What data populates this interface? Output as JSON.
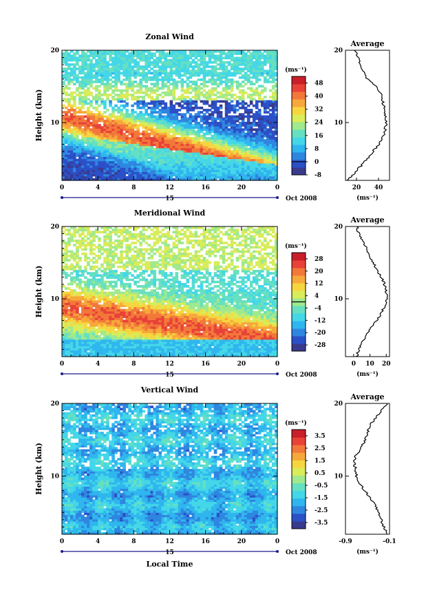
{
  "figure": {
    "xlabel": "Local Time",
    "date_label": "Oct 2008",
    "day_label": "15",
    "ylabel": "Height (km)",
    "units_label": "(ms⁻¹)",
    "avg_title": "Average",
    "colors": [
      "#3a3a8c",
      "#2b50c8",
      "#2f86e0",
      "#30b6ee",
      "#44d7e8",
      "#66e0c0",
      "#9fe98e",
      "#d9ec5a",
      "#f6d640",
      "#f7a83a",
      "#f2783a",
      "#e84238",
      "#c8202a"
    ]
  },
  "chart_data": [
    {
      "type": "heatmap",
      "title": "Zonal Wind",
      "x_ticks": [
        "0",
        "4",
        "8",
        "12",
        "16",
        "20",
        "0"
      ],
      "y_ticks": [
        "20",
        "10"
      ],
      "xlim": [
        0,
        24
      ],
      "ylim": [
        2,
        20
      ],
      "colorbar": {
        "ticks": [
          "48",
          "40",
          "32",
          "24",
          "16",
          "8",
          "0",
          "-8"
        ],
        "range": [
          -8,
          52
        ],
        "zero_line": 0
      },
      "average": {
        "title": "Average",
        "x_ticks": [
          "20",
          "40"
        ],
        "xlim": [
          10,
          50
        ],
        "heights": [
          2,
          3,
          4,
          5,
          6,
          7,
          8,
          9,
          10,
          11,
          12,
          13,
          14,
          15,
          16,
          17,
          18,
          19,
          20
        ],
        "values": [
          12,
          18,
          24,
          30,
          35,
          40,
          44,
          46,
          47,
          46,
          45,
          44,
          42,
          38,
          30,
          26,
          24,
          22,
          18
        ]
      }
    },
    {
      "type": "heatmap",
      "title": "Meridional Wind",
      "x_ticks": [
        "0",
        "4",
        "8",
        "12",
        "16",
        "20",
        "0"
      ],
      "y_ticks": [
        "20",
        "10"
      ],
      "xlim": [
        0,
        24
      ],
      "ylim": [
        2,
        20
      ],
      "colorbar": {
        "ticks": [
          "28",
          "20",
          "12",
          "4",
          "-4",
          "-12",
          "-20",
          "-28"
        ],
        "range": [
          -32,
          32
        ],
        "zero_line": 0
      },
      "average": {
        "title": "Average",
        "x_ticks": [
          "0",
          "10",
          "20"
        ],
        "xlim": [
          -5,
          22
        ],
        "heights": [
          2,
          3,
          4,
          5,
          6,
          7,
          8,
          9,
          10,
          11,
          12,
          13,
          14,
          15,
          16,
          17,
          18,
          19,
          20
        ],
        "values": [
          2,
          3,
          5,
          8,
          11,
          14,
          17,
          19,
          20,
          20,
          19,
          17,
          14,
          12,
          10,
          8,
          5,
          3,
          2
        ]
      }
    },
    {
      "type": "heatmap",
      "title": "Vertical Wind",
      "x_ticks": [
        "0",
        "4",
        "8",
        "12",
        "16",
        "20",
        "0"
      ],
      "y_ticks": [
        "20",
        "10"
      ],
      "xlim": [
        0,
        24
      ],
      "ylim": [
        2,
        20
      ],
      "colorbar": {
        "ticks": [
          "3.5",
          "2.5",
          "1.5",
          "0.5",
          "-0.5",
          "-1.5",
          "-2.5",
          "-3.5"
        ],
        "range": [
          -4,
          4
        ],
        "zero_line": null
      },
      "average": {
        "title": "Average",
        "x_ticks": [
          "-0.9",
          "-0.1"
        ],
        "xlim": [
          -0.9,
          -0.1
        ],
        "heights": [
          2,
          3,
          4,
          5,
          6,
          7,
          8,
          9,
          10,
          11,
          12,
          13,
          14,
          15,
          16,
          17,
          18,
          19,
          20
        ],
        "values": [
          -0.15,
          -0.2,
          -0.25,
          -0.3,
          -0.35,
          -0.45,
          -0.55,
          -0.65,
          -0.7,
          -0.72,
          -0.75,
          -0.7,
          -0.6,
          -0.55,
          -0.5,
          -0.45,
          -0.35,
          -0.25,
          -0.15
        ]
      }
    }
  ]
}
